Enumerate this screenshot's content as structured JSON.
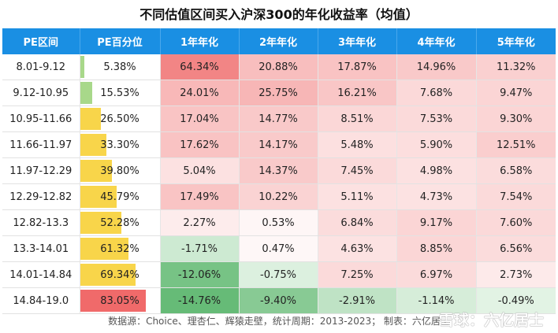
{
  "chart_data": {
    "type": "table",
    "title": "不同估值区间买入沪深300的年化收益率（均值）",
    "columns": [
      "PE区间",
      "PE百分位",
      "1年年化",
      "2年年化",
      "3年年化",
      "4年年化",
      "5年年化"
    ],
    "rows": [
      {
        "range": "8.01-9.12",
        "pct": 5.38,
        "pct_label": "5.38%",
        "returns": [
          64.34,
          20.88,
          17.87,
          14.96,
          11.32
        ],
        "labels": [
          "64.34%",
          "20.88%",
          "17.87%",
          "14.96%",
          "11.32%"
        ]
      },
      {
        "range": "9.12-10.95",
        "pct": 15.53,
        "pct_label": "15.53%",
        "returns": [
          24.01,
          25.75,
          16.21,
          7.68,
          9.47
        ],
        "labels": [
          "24.01%",
          "25.75%",
          "16.21%",
          "7.68%",
          "9.47%"
        ]
      },
      {
        "range": "10.95-11.66",
        "pct": 26.5,
        "pct_label": "26.50%",
        "returns": [
          17.04,
          14.77,
          8.51,
          7.53,
          9.3
        ],
        "labels": [
          "17.04%",
          "14.77%",
          "8.51%",
          "7.53%",
          "9.30%"
        ]
      },
      {
        "range": "11.66-11.97",
        "pct": 33.3,
        "pct_label": "33.30%",
        "returns": [
          17.62,
          14.17,
          5.48,
          5.9,
          12.51
        ],
        "labels": [
          "17.62%",
          "14.17%",
          "5.48%",
          "5.90%",
          "12.51%"
        ]
      },
      {
        "range": "11.97-12.29",
        "pct": 39.8,
        "pct_label": "39.80%",
        "returns": [
          5.04,
          14.37,
          7.45,
          4.98,
          6.58
        ],
        "labels": [
          "5.04%",
          "14.37%",
          "7.45%",
          "4.98%",
          "6.58%"
        ]
      },
      {
        "range": "12.29-12.82",
        "pct": 45.79,
        "pct_label": "45.79%",
        "returns": [
          17.49,
          10.22,
          5.11,
          4.73,
          7.54
        ],
        "labels": [
          "17.49%",
          "10.22%",
          "5.11%",
          "4.73%",
          "7.54%"
        ]
      },
      {
        "range": "12.82-13.3",
        "pct": 52.28,
        "pct_label": "52.28%",
        "returns": [
          2.27,
          0.53,
          6.84,
          9.17,
          7.6
        ],
        "labels": [
          "2.27%",
          "0.53%",
          "6.84%",
          "9.17%",
          "7.60%"
        ]
      },
      {
        "range": "13.3-14.01",
        "pct": 61.32,
        "pct_label": "61.32%",
        "returns": [
          -1.71,
          0.47,
          4.63,
          8.85,
          6.56
        ],
        "labels": [
          "-1.71%",
          "0.47%",
          "4.63%",
          "8.85%",
          "6.56%"
        ]
      },
      {
        "range": "14.01-14.84",
        "pct": 69.34,
        "pct_label": "69.34%",
        "returns": [
          -12.06,
          -0.75,
          7.25,
          6.97,
          2.73
        ],
        "labels": [
          "-12.06%",
          "-0.75%",
          "7.25%",
          "6.97%",
          "2.73%"
        ]
      },
      {
        "range": "14.84-19.0",
        "pct": 83.05,
        "pct_label": "83.05%",
        "returns": [
          -14.76,
          -9.4,
          -2.91,
          -1.14,
          -0.49
        ],
        "labels": [
          "-14.76%",
          "-9.40%",
          "-2.91%",
          "-1.14%",
          "-0.49%"
        ]
      }
    ],
    "colors": {
      "header_bg": "#1a8fe3",
      "positive_max": "#f07070",
      "negative_max": "#5fb870",
      "neutral": "#ffffff",
      "pct_bar_low": "#a8d88a",
      "pct_bar_mid": "#f8d54a",
      "pct_bar_high": "#f06a6a"
    }
  },
  "footer": "数据源：Choice、理杏仁、辉猿走壁，统计周期：2013-2023； 制表：六亿居士",
  "watermark": "雪球：六亿居士"
}
